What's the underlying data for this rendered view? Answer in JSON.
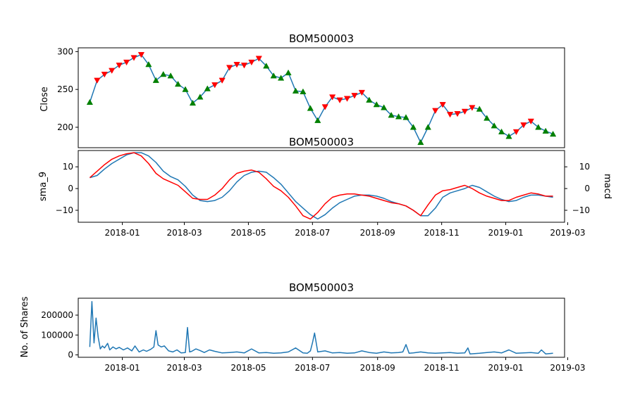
{
  "chart_data": [
    {
      "type": "line",
      "title": "BOM500003",
      "ylabel": "Close",
      "xlim": [
        "2017-11-20",
        "2019-02-26"
      ],
      "ylim": [
        173,
        305
      ],
      "yticks": [
        200,
        250,
        300
      ],
      "ytick_labels": [
        "200",
        "250",
        "300"
      ],
      "series": [
        {
          "color": "#1f77b4",
          "x": [
            "2017-12-01",
            "2017-12-08",
            "2017-12-15",
            "2017-12-22",
            "2017-12-29",
            "2018-01-05",
            "2018-01-12",
            "2018-01-19",
            "2018-01-26",
            "2018-02-02",
            "2018-02-09",
            "2018-02-16",
            "2018-02-23",
            "2018-03-02",
            "2018-03-09",
            "2018-03-16",
            "2018-03-23",
            "2018-03-30",
            "2018-04-06",
            "2018-04-13",
            "2018-04-20",
            "2018-04-27",
            "2018-05-04",
            "2018-05-11",
            "2018-05-18",
            "2018-05-25",
            "2018-06-01",
            "2018-06-08",
            "2018-06-15",
            "2018-06-22",
            "2018-06-29",
            "2018-07-06",
            "2018-07-13",
            "2018-07-20",
            "2018-07-27",
            "2018-08-03",
            "2018-08-10",
            "2018-08-17",
            "2018-08-24",
            "2018-08-31",
            "2018-09-07",
            "2018-09-14",
            "2018-09-21",
            "2018-09-28",
            "2018-10-05",
            "2018-10-12",
            "2018-10-19",
            "2018-10-26",
            "2018-11-02",
            "2018-11-09",
            "2018-11-16",
            "2018-11-23",
            "2018-11-30",
            "2018-12-07",
            "2018-12-14",
            "2018-12-21",
            "2018-12-28",
            "2019-01-04",
            "2019-01-11",
            "2019-01-18",
            "2019-01-25",
            "2019-02-01",
            "2019-02-08",
            "2019-02-15"
          ],
          "values": [
            233,
            262,
            270,
            275,
            282,
            286,
            292,
            296,
            283,
            262,
            270,
            268,
            257,
            250,
            232,
            240,
            251,
            256,
            262,
            279,
            283,
            282,
            286,
            291,
            281,
            268,
            265,
            272,
            248,
            247,
            225,
            209,
            227,
            240,
            236,
            238,
            242,
            246,
            236,
            230,
            226,
            216,
            214,
            213,
            200,
            180,
            200,
            222,
            230,
            217,
            218,
            221,
            226,
            224,
            212,
            202,
            194,
            188,
            194,
            203,
            208,
            200,
            195,
            191
          ]
        }
      ],
      "markers": [
        {
          "symbol": "triangle-up",
          "color": "#008000",
          "x": [
            "2017-12-01",
            "2018-01-26",
            "2018-02-02",
            "2018-02-09",
            "2018-02-16",
            "2018-02-23",
            "2018-03-02",
            "2018-03-09",
            "2018-03-16",
            "2018-03-23",
            "2018-05-18",
            "2018-05-25",
            "2018-06-01",
            "2018-06-08",
            "2018-06-15",
            "2018-06-22",
            "2018-06-29",
            "2018-07-06",
            "2018-08-24",
            "2018-08-31",
            "2018-09-07",
            "2018-09-14",
            "2018-09-21",
            "2018-09-28",
            "2018-10-05",
            "2018-10-12",
            "2018-10-19",
            "2018-12-07",
            "2018-12-14",
            "2018-12-21",
            "2018-12-28",
            "2019-01-04",
            "2019-02-01",
            "2019-02-08",
            "2019-02-15"
          ],
          "values": [
            233,
            283,
            262,
            270,
            268,
            257,
            250,
            232,
            240,
            251,
            281,
            268,
            265,
            272,
            248,
            247,
            225,
            209,
            236,
            230,
            226,
            216,
            214,
            213,
            200,
            180,
            200,
            224,
            212,
            202,
            194,
            188,
            200,
            195,
            191
          ]
        },
        {
          "symbol": "triangle-down",
          "color": "#ff0000",
          "x": [
            "2017-12-08",
            "2017-12-15",
            "2017-12-22",
            "2017-12-29",
            "2018-01-05",
            "2018-01-12",
            "2018-01-19",
            "2018-03-30",
            "2018-04-06",
            "2018-04-13",
            "2018-04-20",
            "2018-04-27",
            "2018-05-04",
            "2018-05-11",
            "2018-07-13",
            "2018-07-20",
            "2018-07-27",
            "2018-08-03",
            "2018-08-10",
            "2018-08-17",
            "2018-10-26",
            "2018-11-02",
            "2018-11-09",
            "2018-11-16",
            "2018-11-23",
            "2018-11-30",
            "2019-01-11",
            "2019-01-18",
            "2019-01-25"
          ],
          "values": [
            262,
            270,
            275,
            282,
            286,
            292,
            296,
            256,
            262,
            279,
            283,
            282,
            286,
            291,
            227,
            240,
            236,
            238,
            242,
            246,
            222,
            230,
            217,
            218,
            221,
            226,
            194,
            203,
            208
          ]
        }
      ]
    },
    {
      "type": "line",
      "title": "BOM500003",
      "ylabel": "sma_9",
      "ylabel_right": "macd",
      "xlim": [
        "2017-11-20",
        "2019-02-26"
      ],
      "ylim": [
        -15.5,
        17.5
      ],
      "yticks": [
        -10,
        0,
        10
      ],
      "ytick_labels": [
        "−10",
        "0",
        "10"
      ],
      "xticks": [
        "2018-01-01",
        "2018-03-01",
        "2018-05-01",
        "2018-07-01",
        "2018-09-01",
        "2018-11-01",
        "2019-01-01",
        "2019-03-01"
      ],
      "xtick_labels": [
        "2018-01",
        "2018-03",
        "2018-05",
        "2018-07",
        "2018-09",
        "2018-11",
        "2019-01",
        "2019-03"
      ],
      "series": [
        {
          "color": "#1f77b4",
          "x": [
            "2017-12-01",
            "2017-12-08",
            "2017-12-15",
            "2017-12-22",
            "2017-12-29",
            "2018-01-05",
            "2018-01-12",
            "2018-01-19",
            "2018-01-26",
            "2018-02-02",
            "2018-02-09",
            "2018-02-16",
            "2018-02-23",
            "2018-03-02",
            "2018-03-09",
            "2018-03-16",
            "2018-03-23",
            "2018-03-30",
            "2018-04-06",
            "2018-04-13",
            "2018-04-20",
            "2018-04-27",
            "2018-05-04",
            "2018-05-11",
            "2018-05-18",
            "2018-05-25",
            "2018-06-01",
            "2018-06-08",
            "2018-06-15",
            "2018-06-22",
            "2018-06-29",
            "2018-07-06",
            "2018-07-13",
            "2018-07-20",
            "2018-07-27",
            "2018-08-03",
            "2018-08-10",
            "2018-08-17",
            "2018-08-24",
            "2018-08-31",
            "2018-09-07",
            "2018-09-14",
            "2018-09-21",
            "2018-09-28",
            "2018-10-05",
            "2018-10-12",
            "2018-10-19",
            "2018-10-26",
            "2018-11-02",
            "2018-11-09",
            "2018-11-16",
            "2018-11-23",
            "2018-11-30",
            "2018-12-07",
            "2018-12-14",
            "2018-12-21",
            "2018-12-28",
            "2019-01-04",
            "2019-01-11",
            "2019-01-18",
            "2019-01-25",
            "2019-02-01",
            "2019-02-08",
            "2019-02-15"
          ],
          "values": [
            5,
            6,
            9,
            11.5,
            13.5,
            15.5,
            16.5,
            16.5,
            15,
            12,
            8,
            5.5,
            4,
            1,
            -3,
            -5.5,
            -6,
            -5.5,
            -4,
            -1,
            3,
            6,
            7.5,
            8,
            7.5,
            5,
            2,
            -2,
            -6,
            -9,
            -12,
            -14,
            -12,
            -9,
            -6.5,
            -5,
            -3.5,
            -3,
            -3,
            -3.5,
            -4.5,
            -6,
            -7,
            -8,
            -10,
            -12.5,
            -12.5,
            -9,
            -4,
            -2,
            -1,
            0,
            1.5,
            0.5,
            -1.5,
            -3.5,
            -5,
            -6,
            -5.5,
            -4,
            -3,
            -3,
            -3.5,
            -4
          ]
        },
        {
          "color": "#ff0000",
          "x": [
            "2017-12-01",
            "2017-12-08",
            "2017-12-15",
            "2017-12-22",
            "2017-12-29",
            "2018-01-05",
            "2018-01-12",
            "2018-01-19",
            "2018-01-26",
            "2018-02-02",
            "2018-02-09",
            "2018-02-16",
            "2018-02-23",
            "2018-03-02",
            "2018-03-09",
            "2018-03-16",
            "2018-03-23",
            "2018-03-30",
            "2018-04-06",
            "2018-04-13",
            "2018-04-20",
            "2018-04-27",
            "2018-05-04",
            "2018-05-11",
            "2018-05-18",
            "2018-05-25",
            "2018-06-01",
            "2018-06-08",
            "2018-06-15",
            "2018-06-22",
            "2018-06-29",
            "2018-07-06",
            "2018-07-13",
            "2018-07-20",
            "2018-07-27",
            "2018-08-03",
            "2018-08-10",
            "2018-08-17",
            "2018-08-24",
            "2018-08-31",
            "2018-09-07",
            "2018-09-14",
            "2018-09-21",
            "2018-09-28",
            "2018-10-05",
            "2018-10-12",
            "2018-10-19",
            "2018-10-26",
            "2018-11-02",
            "2018-11-09",
            "2018-11-16",
            "2018-11-23",
            "2018-11-30",
            "2018-12-07",
            "2018-12-14",
            "2018-12-21",
            "2018-12-28",
            "2019-01-04",
            "2019-01-11",
            "2019-01-18",
            "2019-01-25",
            "2019-02-01",
            "2019-02-08",
            "2019-02-15"
          ],
          "values": [
            5,
            8,
            11,
            13.5,
            15,
            16,
            16.5,
            15,
            11.5,
            7,
            4.5,
            3,
            1.5,
            -1.5,
            -4.5,
            -5,
            -5,
            -3,
            0,
            4,
            7,
            8,
            8.5,
            7.5,
            4.5,
            1,
            -1,
            -4,
            -8,
            -12.5,
            -14,
            -11,
            -7,
            -4,
            -3,
            -2.5,
            -2.5,
            -3,
            -3.5,
            -4.5,
            -5.5,
            -6.5,
            -7,
            -8,
            -10,
            -12.5,
            -7.5,
            -3,
            -1,
            -0.5,
            0.5,
            1.5,
            0,
            -2,
            -3.5,
            -4.5,
            -5.5,
            -5.5,
            -4,
            -3,
            -2,
            -2.5,
            -3.5,
            -3.5
          ]
        }
      ]
    },
    {
      "type": "line",
      "title": "BOM500003",
      "ylabel": "No. of Shares",
      "xlim": [
        "2017-11-20",
        "2019-02-26"
      ],
      "ylim": [
        -12000,
        285000
      ],
      "yticks": [
        0,
        100000,
        200000
      ],
      "ytick_labels": [
        "0",
        "100000",
        "200000"
      ],
      "xticks": [
        "2018-01-01",
        "2018-03-01",
        "2018-05-01",
        "2018-07-01",
        "2018-09-01",
        "2018-11-01",
        "2019-01-01",
        "2019-03-01"
      ],
      "xtick_labels": [
        "2018-01",
        "2018-03",
        "2018-05",
        "2018-07",
        "2018-09",
        "2018-11",
        "2019-01",
        "2019-03"
      ],
      "series": [
        {
          "color": "#1f77b4",
          "x": [
            "2017-12-01",
            "2017-12-03",
            "2017-12-05",
            "2017-12-07",
            "2017-12-09",
            "2017-12-11",
            "2017-12-13",
            "2017-12-15",
            "2017-12-18",
            "2017-12-20",
            "2017-12-23",
            "2017-12-26",
            "2017-12-29",
            "2018-01-02",
            "2018-01-06",
            "2018-01-10",
            "2018-01-13",
            "2018-01-17",
            "2018-01-21",
            "2018-01-24",
            "2018-01-28",
            "2018-01-31",
            "2018-02-02",
            "2018-02-04",
            "2018-02-07",
            "2018-02-10",
            "2018-02-14",
            "2018-02-18",
            "2018-02-22",
            "2018-02-26",
            "2018-03-02",
            "2018-03-04",
            "2018-03-06",
            "2018-03-08",
            "2018-03-12",
            "2018-03-16",
            "2018-03-20",
            "2018-03-25",
            "2018-03-30",
            "2018-04-06",
            "2018-04-13",
            "2018-04-20",
            "2018-04-27",
            "2018-05-04",
            "2018-05-11",
            "2018-05-18",
            "2018-05-25",
            "2018-06-01",
            "2018-06-08",
            "2018-06-15",
            "2018-06-22",
            "2018-06-26",
            "2018-06-29",
            "2018-07-01",
            "2018-07-03",
            "2018-07-06",
            "2018-07-13",
            "2018-07-20",
            "2018-07-27",
            "2018-08-03",
            "2018-08-10",
            "2018-08-17",
            "2018-08-24",
            "2018-08-31",
            "2018-09-07",
            "2018-09-14",
            "2018-09-21",
            "2018-09-25",
            "2018-09-28",
            "2018-10-01",
            "2018-10-05",
            "2018-10-12",
            "2018-10-19",
            "2018-10-26",
            "2018-11-02",
            "2018-11-09",
            "2018-11-16",
            "2018-11-23",
            "2018-11-26",
            "2018-11-28",
            "2018-12-07",
            "2018-12-14",
            "2018-12-21",
            "2018-12-28",
            "2019-01-04",
            "2019-01-11",
            "2019-01-18",
            "2019-01-25",
            "2019-02-01",
            "2019-02-04",
            "2019-02-08",
            "2019-02-15"
          ],
          "values": [
            40000,
            268000,
            60000,
            185000,
            90000,
            30000,
            45000,
            35000,
            58000,
            25000,
            40000,
            30000,
            38000,
            25000,
            35000,
            20000,
            45000,
            15000,
            25000,
            18000,
            28000,
            40000,
            122000,
            50000,
            40000,
            45000,
            20000,
            15000,
            25000,
            10000,
            12000,
            138000,
            15000,
            18000,
            30000,
            22000,
            12000,
            25000,
            18000,
            10000,
            12000,
            15000,
            10000,
            30000,
            10000,
            12000,
            8000,
            10000,
            15000,
            35000,
            10000,
            8000,
            20000,
            60000,
            110000,
            15000,
            20000,
            10000,
            12000,
            8000,
            10000,
            20000,
            12000,
            8000,
            15000,
            10000,
            12000,
            15000,
            52000,
            8000,
            10000,
            15000,
            10000,
            8000,
            10000,
            12000,
            8000,
            10000,
            35000,
            5000,
            8000,
            12000,
            15000,
            10000,
            25000,
            8000,
            10000,
            12000,
            8000,
            25000,
            5000,
            8000
          ]
        }
      ]
    }
  ]
}
